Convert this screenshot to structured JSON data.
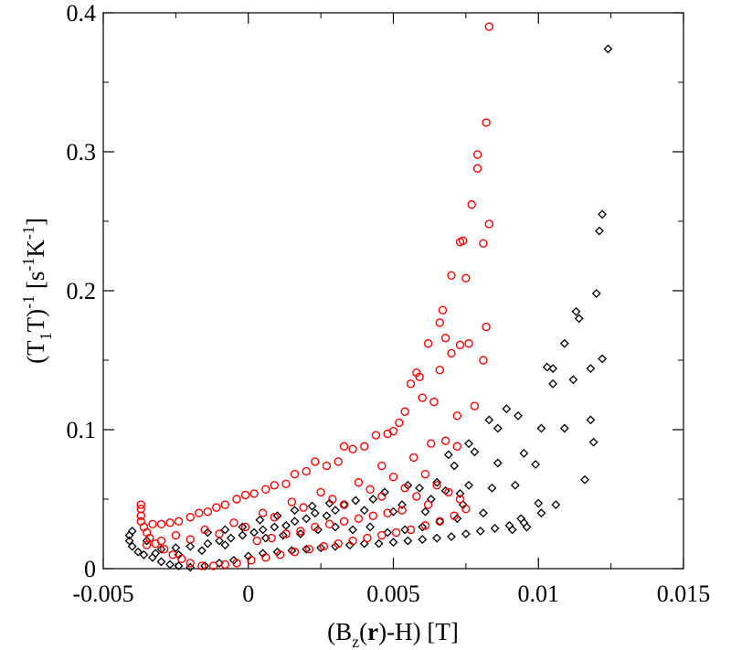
{
  "chart_data": {
    "type": "scatter",
    "title": "",
    "xlabel": "(Bz(r)-H) [T]",
    "ylabel": "(T1T)^-1 [s^-1 K^-1]",
    "xlim": [
      -0.005,
      0.015
    ],
    "ylim": [
      0,
      0.4
    ],
    "grid": false,
    "xticks": [
      -0.005,
      0,
      0.005,
      0.01,
      0.015
    ],
    "xtick_labels": [
      "-0.005",
      "0",
      "0.005",
      "0.01",
      "0.015"
    ],
    "yticks": [
      0,
      0.1,
      0.2,
      0.3,
      0.4
    ],
    "ytick_labels": [
      "0",
      "0.1",
      "0.2",
      "0.3",
      "0.4"
    ],
    "xlabel_parts": {
      "pre": "(B",
      "sub": "z",
      "mid": "(",
      "bold": "r",
      "post": ")-H) [T]"
    },
    "ylabel_parts": {
      "p1": "(T",
      "sub": "1",
      "p2": "T)",
      "sup1": "-1",
      "p3": " [s",
      "sup2": "-1",
      "p4": "K",
      "sup3": "-1",
      "p5": "]"
    },
    "series": [
      {
        "name": "black diamonds",
        "marker": "diamond",
        "color": "#000000",
        "points": [
          [
            0.0124,
            0.374
          ],
          [
            0.0122,
            0.255
          ],
          [
            0.0121,
            0.243
          ],
          [
            0.012,
            0.198
          ],
          [
            0.0122,
            0.151
          ],
          [
            0.0118,
            0.144
          ],
          [
            0.0118,
            0.107
          ],
          [
            0.0119,
            0.091
          ],
          [
            0.0116,
            0.064
          ],
          [
            0.0113,
            0.185
          ],
          [
            0.0114,
            0.18
          ],
          [
            0.0109,
            0.162
          ],
          [
            0.0112,
            0.136
          ],
          [
            0.0109,
            0.101
          ],
          [
            0.0106,
            0.046
          ],
          [
            0.0103,
            0.145
          ],
          [
            0.0105,
            0.144
          ],
          [
            0.0105,
            0.133
          ],
          [
            0.0101,
            0.101
          ],
          [
            0.0099,
            0.075
          ],
          [
            0.01,
            0.047
          ],
          [
            0.0101,
            0.04
          ],
          [
            0.0096,
            0.03
          ],
          [
            0.0093,
            0.11
          ],
          [
            0.0089,
            0.115
          ],
          [
            0.0095,
            0.083
          ],
          [
            0.0092,
            0.06
          ],
          [
            0.0094,
            0.036
          ],
          [
            0.0091,
            0.028
          ],
          [
            0.0086,
            0.101
          ],
          [
            0.0083,
            0.107
          ],
          [
            0.0086,
            0.076
          ],
          [
            0.0084,
            0.058
          ],
          [
            0.0081,
            0.04
          ],
          [
            0.0078,
            0.084
          ],
          [
            0.0076,
            0.09
          ],
          [
            0.0076,
            0.06
          ],
          [
            0.0073,
            0.054
          ],
          [
            0.0074,
            0.046
          ],
          [
            0.0071,
            0.074
          ],
          [
            0.0069,
            0.082
          ],
          [
            0.0068,
            0.056
          ],
          [
            0.0065,
            0.062
          ],
          [
            0.0063,
            0.05
          ],
          [
            0.0061,
            0.041
          ],
          [
            0.0059,
            0.058
          ],
          [
            0.0055,
            0.06
          ],
          [
            0.0053,
            0.046
          ],
          [
            0.005,
            0.041
          ],
          [
            0.0047,
            0.055
          ],
          [
            0.0043,
            0.05
          ],
          [
            0.004,
            0.042
          ],
          [
            0.0037,
            0.049
          ],
          [
            0.0033,
            0.046
          ],
          [
            0.003,
            0.042
          ],
          [
            0.0027,
            0.038
          ],
          [
            0.0023,
            0.04
          ],
          [
            0.002,
            0.036
          ],
          [
            0.0016,
            0.034
          ],
          [
            0.0013,
            0.031
          ],
          [
            0.0009,
            0.03
          ],
          [
            0.0005,
            0.028
          ],
          [
            0.0002,
            0.026
          ],
          [
            -0.0002,
            0.024
          ],
          [
            -0.0006,
            0.022
          ],
          [
            -0.001,
            0.02
          ],
          [
            -0.0014,
            0.018
          ],
          [
            -0.002,
            0.016
          ],
          [
            -0.0025,
            0.015
          ],
          [
            -0.003,
            0.014
          ],
          [
            -0.0035,
            0.02
          ],
          [
            -0.004,
            0.027
          ],
          [
            -0.0041,
            0.024
          ],
          [
            -0.0041,
            0.02
          ],
          [
            -0.004,
            0.016
          ],
          [
            -0.0038,
            0.012
          ],
          [
            -0.0036,
            0.01
          ],
          [
            -0.0033,
            0.008
          ],
          [
            -0.003,
            0.005
          ],
          [
            -0.0027,
            0.003
          ],
          [
            -0.0024,
            0.002
          ],
          [
            -0.002,
            0.001
          ],
          [
            -0.0015,
            0.002
          ],
          [
            -0.001,
            0.004
          ],
          [
            -0.0005,
            0.006
          ],
          [
            0.0,
            0.009
          ],
          [
            0.0005,
            0.011
          ],
          [
            0.001,
            0.012
          ],
          [
            0.0015,
            0.013
          ],
          [
            0.002,
            0.014
          ],
          [
            0.0025,
            0.015
          ],
          [
            0.003,
            0.016
          ],
          [
            0.0035,
            0.017
          ],
          [
            0.004,
            0.018
          ],
          [
            0.0045,
            0.018
          ],
          [
            0.005,
            0.019
          ],
          [
            0.0055,
            0.02
          ],
          [
            0.006,
            0.021
          ],
          [
            0.0065,
            0.022
          ],
          [
            0.007,
            0.023
          ],
          [
            0.0075,
            0.025
          ],
          [
            0.008,
            0.027
          ],
          [
            0.0085,
            0.029
          ],
          [
            0.009,
            0.031
          ],
          [
            0.0095,
            0.033
          ],
          [
            0.0006,
            0.022
          ],
          [
            0.0012,
            0.024
          ],
          [
            0.0018,
            0.025
          ],
          [
            0.0024,
            0.028
          ],
          [
            0.003,
            0.03
          ],
          [
            0.0036,
            0.028
          ],
          [
            0.0042,
            0.03
          ],
          [
            0.0048,
            0.026
          ],
          [
            0.0054,
            0.028
          ],
          [
            0.006,
            0.03
          ],
          [
            0.0066,
            0.034
          ],
          [
            0.0072,
            0.036
          ],
          [
            -0.0008,
            0.017
          ],
          [
            -0.0016,
            0.013
          ],
          [
            -0.0024,
            0.01
          ],
          [
            -0.0032,
            0.011
          ],
          [
            0.001,
            0.038
          ],
          [
            0.0016,
            0.042
          ],
          [
            0.0022,
            0.045
          ],
          [
            0.0028,
            0.047
          ],
          [
            0.0004,
            0.035
          ],
          [
            -0.0002,
            0.03
          ],
          [
            -0.0008,
            0.028
          ],
          [
            -0.0014,
            0.026
          ]
        ]
      },
      {
        "name": "red circles",
        "marker": "circle",
        "color": "#ff0000",
        "points": [
          [
            0.0083,
            0.39
          ],
          [
            0.0082,
            0.321
          ],
          [
            0.0079,
            0.298
          ],
          [
            0.0079,
            0.288
          ],
          [
            0.0083,
            0.248
          ],
          [
            0.0077,
            0.262
          ],
          [
            0.0073,
            0.235
          ],
          [
            0.0074,
            0.236
          ],
          [
            0.0081,
            0.234
          ],
          [
            0.0075,
            0.209
          ],
          [
            0.007,
            0.211
          ],
          [
            0.0067,
            0.186
          ],
          [
            0.0066,
            0.177
          ],
          [
            0.0068,
            0.166
          ],
          [
            0.0082,
            0.174
          ],
          [
            0.0076,
            0.162
          ],
          [
            0.0073,
            0.161
          ],
          [
            0.0062,
            0.162
          ],
          [
            0.0081,
            0.15
          ],
          [
            0.007,
            0.155
          ],
          [
            0.0066,
            0.143
          ],
          [
            0.0058,
            0.141
          ],
          [
            0.0059,
            0.138
          ],
          [
            0.0056,
            0.133
          ],
          [
            0.006,
            0.123
          ],
          [
            0.0054,
            0.113
          ],
          [
            0.0064,
            0.12
          ],
          [
            0.0078,
            0.117
          ],
          [
            0.0072,
            0.11
          ],
          [
            0.0052,
            0.105
          ],
          [
            0.005,
            0.099
          ],
          [
            0.0048,
            0.097
          ],
          [
            0.0044,
            0.096
          ],
          [
            0.004,
            0.088
          ],
          [
            0.0036,
            0.086
          ],
          [
            0.0033,
            0.088
          ],
          [
            0.0031,
            0.077
          ],
          [
            0.0027,
            0.074
          ],
          [
            0.0023,
            0.077
          ],
          [
            0.002,
            0.07
          ],
          [
            0.0016,
            0.068
          ],
          [
            0.0013,
            0.061
          ],
          [
            0.0009,
            0.06
          ],
          [
            0.0006,
            0.057
          ],
          [
            0.0002,
            0.054
          ],
          [
            -0.0001,
            0.053
          ],
          [
            -0.0004,
            0.05
          ],
          [
            -0.0008,
            0.046
          ],
          [
            -0.0011,
            0.044
          ],
          [
            -0.0014,
            0.041
          ],
          [
            -0.0017,
            0.04
          ],
          [
            -0.002,
            0.037
          ],
          [
            -0.0024,
            0.034
          ],
          [
            -0.0027,
            0.033
          ],
          [
            -0.003,
            0.032
          ],
          [
            -0.0033,
            0.032
          ],
          [
            -0.0037,
            0.046
          ],
          [
            -0.0037,
            0.043
          ],
          [
            -0.0037,
            0.038
          ],
          [
            -0.0037,
            0.034
          ],
          [
            -0.0036,
            0.03
          ],
          [
            -0.0035,
            0.026
          ],
          [
            -0.0034,
            0.022
          ],
          [
            -0.0032,
            0.018
          ],
          [
            -0.0029,
            0.014
          ],
          [
            -0.0026,
            0.01
          ],
          [
            -0.0023,
            0.007
          ],
          [
            -0.002,
            0.004
          ],
          [
            -0.0016,
            0.002
          ],
          [
            -0.0012,
            0.002
          ],
          [
            -0.0008,
            0.003
          ],
          [
            -0.0004,
            0.004
          ],
          [
            0.0001,
            0.006
          ],
          [
            0.0006,
            0.008
          ],
          [
            0.0011,
            0.01
          ],
          [
            0.0016,
            0.012
          ],
          [
            0.0021,
            0.014
          ],
          [
            0.0026,
            0.016
          ],
          [
            0.0031,
            0.018
          ],
          [
            0.0036,
            0.02
          ],
          [
            0.0041,
            0.022
          ],
          [
            0.0046,
            0.024
          ],
          [
            0.0051,
            0.026
          ],
          [
            0.0056,
            0.028
          ],
          [
            0.0061,
            0.031
          ],
          [
            0.0066,
            0.034
          ],
          [
            0.0071,
            0.038
          ],
          [
            0.0075,
            0.043
          ],
          [
            0.0057,
            0.08
          ],
          [
            0.0061,
            0.068
          ],
          [
            0.0065,
            0.06
          ],
          [
            0.0069,
            0.055
          ],
          [
            0.0073,
            0.05
          ],
          [
            0.0063,
            0.09
          ],
          [
            0.0068,
            0.092
          ],
          [
            0.0072,
            0.088
          ],
          [
            0.0046,
            0.074
          ],
          [
            0.005,
            0.066
          ],
          [
            0.0054,
            0.058
          ],
          [
            0.0058,
            0.052
          ],
          [
            0.0062,
            0.046
          ],
          [
            0.0038,
            0.062
          ],
          [
            0.0042,
            0.057
          ],
          [
            0.0046,
            0.052
          ],
          [
            0.0025,
            0.055
          ],
          [
            0.0029,
            0.05
          ],
          [
            0.0033,
            0.046
          ],
          [
            0.0015,
            0.048
          ],
          [
            0.0019,
            0.044
          ],
          [
            0.0005,
            0.04
          ],
          [
            0.0009,
            0.037
          ],
          [
            -0.0005,
            0.033
          ],
          [
            -0.0001,
            0.03
          ],
          [
            -0.0015,
            0.028
          ],
          [
            -0.001,
            0.025
          ],
          [
            -0.0025,
            0.024
          ],
          [
            -0.002,
            0.021
          ],
          [
            -0.003,
            0.02
          ],
          [
            -0.0035,
            0.017
          ],
          [
            0.0003,
            0.02
          ],
          [
            0.0008,
            0.022
          ],
          [
            0.0013,
            0.025
          ],
          [
            0.0018,
            0.027
          ],
          [
            0.0023,
            0.03
          ],
          [
            0.0028,
            0.032
          ],
          [
            0.0033,
            0.034
          ],
          [
            0.0038,
            0.036
          ],
          [
            0.0043,
            0.038
          ],
          [
            0.0048,
            0.04
          ],
          [
            0.0053,
            0.042
          ]
        ]
      }
    ]
  }
}
